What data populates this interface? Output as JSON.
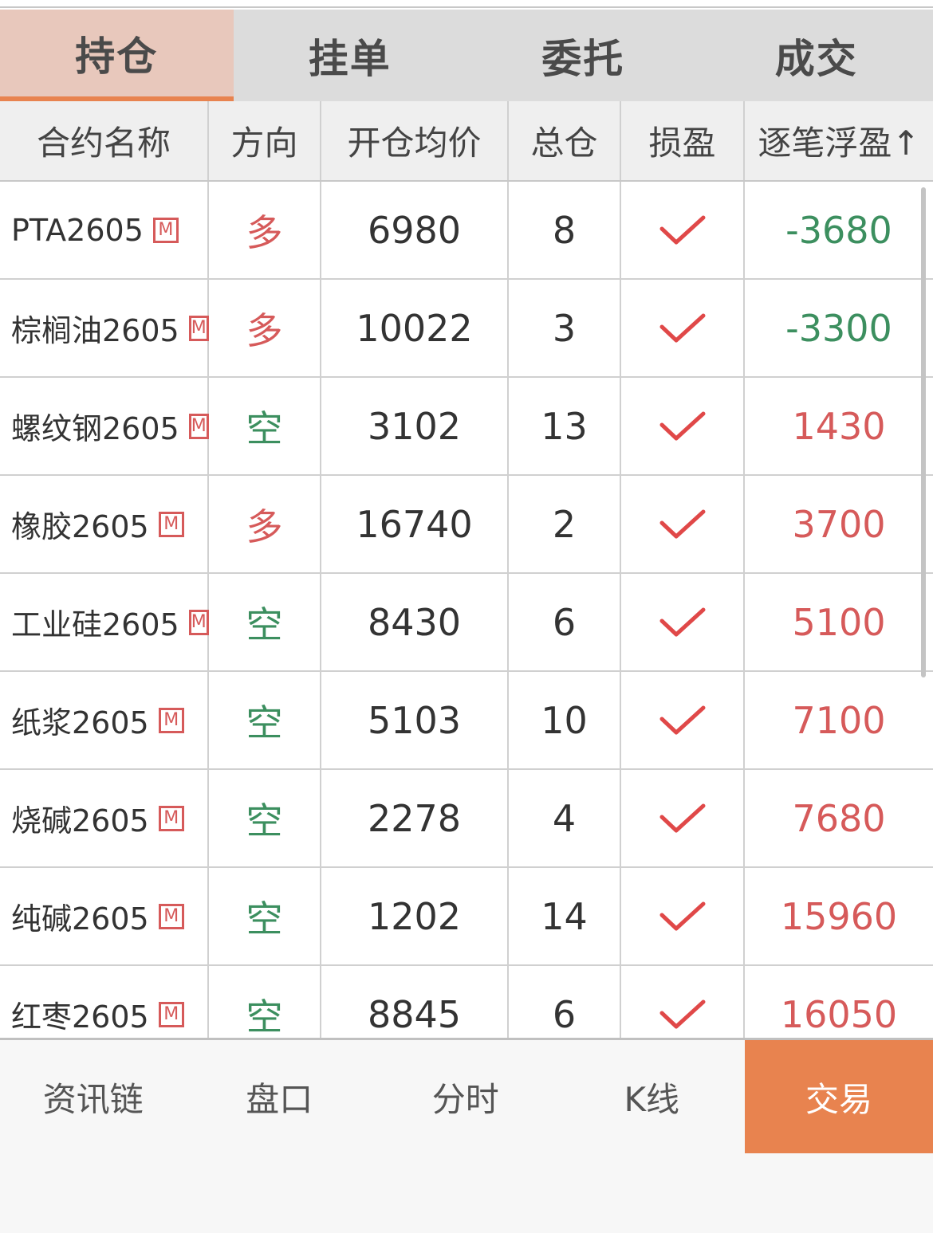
{
  "tabs": [
    {
      "label": "持仓",
      "active": true
    },
    {
      "label": "挂单"
    },
    {
      "label": "委托"
    },
    {
      "label": "成交"
    }
  ],
  "columns": [
    "合约名称",
    "方向",
    "开仓均价",
    "总仓",
    "损盈",
    "逐笔浮盈↑"
  ],
  "rows": [
    {
      "name": "PTA2605",
      "badge": "M",
      "dir": "多",
      "price": "6980",
      "qty": "8",
      "pnl": "-3680"
    },
    {
      "name": "棕榈油2605",
      "badge": "M",
      "dir": "多",
      "price": "10022",
      "qty": "3",
      "pnl": "-3300"
    },
    {
      "name": "螺纹钢2605",
      "badge": "M",
      "dir": "空",
      "price": "3102",
      "qty": "13",
      "pnl": "1430"
    },
    {
      "name": "橡胶2605",
      "badge": "M",
      "dir": "多",
      "price": "16740",
      "qty": "2",
      "pnl": "3700"
    },
    {
      "name": "工业硅2605",
      "badge": "M",
      "dir": "空",
      "price": "8430",
      "qty": "6",
      "pnl": "5100"
    },
    {
      "name": "纸浆2605",
      "badge": "M",
      "dir": "空",
      "price": "5103",
      "qty": "10",
      "pnl": "7100"
    },
    {
      "name": "烧碱2605",
      "badge": "M",
      "dir": "空",
      "price": "2278",
      "qty": "4",
      "pnl": "7680"
    },
    {
      "name": "纯碱2605",
      "badge": "M",
      "dir": "空",
      "price": "1202",
      "qty": "14",
      "pnl": "15960"
    },
    {
      "name": "红枣2605",
      "badge": "M",
      "dir": "空",
      "price": "8845",
      "qty": "6",
      "pnl": "16050"
    }
  ],
  "bottom_nav": [
    "资讯链",
    "盘口",
    "分时",
    "K线",
    "交易"
  ],
  "colors": {
    "accent": "#e8834f",
    "profit": "#d65a5a",
    "loss": "#3c8f5f",
    "check": "#e04848"
  }
}
